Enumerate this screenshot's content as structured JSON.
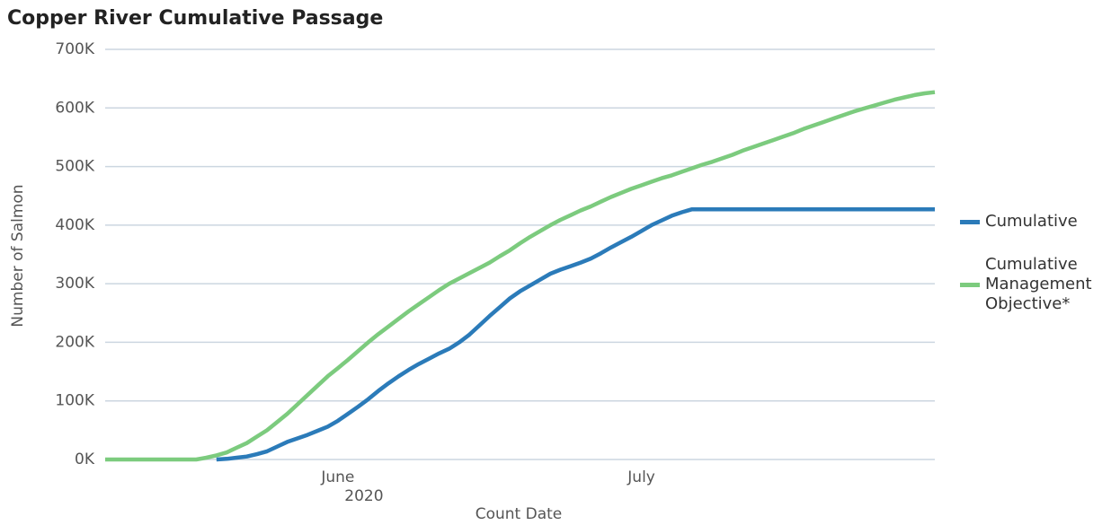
{
  "chart_data": {
    "type": "line",
    "title": "Copper River Cumulative Passage",
    "x_label": "Count Date",
    "x_sublabel": "2020",
    "y_label": "Number of Salmon",
    "categories": [
      null,
      null,
      null,
      null,
      null,
      null,
      null,
      null,
      null,
      null,
      null,
      null,
      null,
      null,
      null,
      null,
      null,
      null,
      null,
      null,
      null,
      null,
      null,
      "June",
      null,
      null,
      null,
      null,
      null,
      null,
      null,
      null,
      null,
      null,
      null,
      null,
      null,
      null,
      null,
      null,
      null,
      null,
      null,
      null,
      null,
      null,
      null,
      null,
      null,
      null,
      null,
      null,
      null,
      "July",
      null,
      null,
      null,
      null,
      null,
      null,
      null,
      null,
      null,
      null,
      null,
      null,
      null,
      null,
      null,
      null,
      null,
      null,
      null,
      null,
      null,
      null,
      null,
      null,
      null,
      null,
      null,
      null,
      null
    ],
    "series": [
      {
        "name": "Cumulative",
        "color": "#2b7bb9",
        "values": [
          null,
          null,
          null,
          null,
          null,
          null,
          null,
          null,
          null,
          null,
          null,
          0,
          1000,
          3000,
          5000,
          9000,
          14000,
          22000,
          30000,
          36000,
          42000,
          49000,
          56000,
          66000,
          78000,
          90000,
          103000,
          117000,
          130000,
          142000,
          153000,
          163000,
          172000,
          181000,
          189000,
          200000,
          213000,
          229000,
          245000,
          260000,
          275000,
          287000,
          297000,
          307000,
          317000,
          324000,
          330000,
          336000,
          343000,
          352000,
          362000,
          371000,
          380000,
          390000,
          400000,
          408000,
          416000,
          422000,
          427000,
          427000,
          427000,
          427000,
          427000,
          427000,
          427000,
          427000,
          427000,
          427000,
          427000,
          427000,
          427000,
          427000,
          427000,
          427000,
          427000,
          427000,
          427000,
          427000,
          427000,
          427000,
          427000,
          427000,
          427000
        ]
      },
      {
        "name": "Cumulative Management Objective*",
        "color": "#7ccb7e",
        "values": [
          0,
          0,
          0,
          0,
          0,
          0,
          0,
          0,
          0,
          0,
          3000,
          7000,
          12000,
          20000,
          28000,
          39000,
          50000,
          64000,
          78000,
          94000,
          110000,
          126000,
          142000,
          156000,
          170000,
          185000,
          200000,
          214000,
          227000,
          240000,
          253000,
          265000,
          277000,
          289000,
          300000,
          309000,
          318000,
          327000,
          336000,
          347000,
          357000,
          369000,
          380000,
          390000,
          400000,
          409000,
          417000,
          425000,
          432000,
          440000,
          448000,
          455000,
          462000,
          468000,
          474000,
          480000,
          485000,
          491000,
          497000,
          503000,
          508000,
          514000,
          520000,
          527000,
          533000,
          539000,
          545000,
          551000,
          557000,
          564000,
          570000,
          576000,
          582000,
          588000,
          594000,
          599000,
          604000,
          609000,
          614000,
          618000,
          622000,
          625000,
          627000
        ]
      }
    ],
    "ylim": [
      0,
      700000
    ],
    "yticks": [
      {
        "value": 0,
        "label": "0K"
      },
      {
        "value": 100000,
        "label": "100K"
      },
      {
        "value": 200000,
        "label": "200K"
      },
      {
        "value": 300000,
        "label": "300K"
      },
      {
        "value": 400000,
        "label": "400K"
      },
      {
        "value": 500000,
        "label": "500K"
      },
      {
        "value": 600000,
        "label": "600K"
      },
      {
        "value": 700000,
        "label": "700K"
      }
    ],
    "grid": true,
    "legend": "right"
  }
}
